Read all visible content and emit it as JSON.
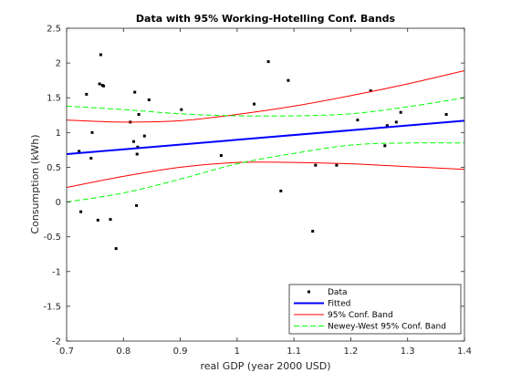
{
  "chart_data": {
    "type": "scatter",
    "title": "Data with 95% Working-Hotelling Conf. Bands",
    "xlabel": "real GDP (year 2000 USD)",
    "ylabel": "Consumption (kWh)",
    "xlim": [
      0.7,
      1.4
    ],
    "ylim": [
      -2,
      2.5
    ],
    "xticks": [
      "0.7",
      "0.8",
      "0.9",
      "1",
      "1.1",
      "1.2",
      "1.3",
      "1.4"
    ],
    "yticks": [
      "-2",
      "-1.5",
      "-1",
      "-0.5",
      "0",
      "0.5",
      "1",
      "1.5",
      "2",
      "2.5"
    ],
    "grid": false,
    "legend_position": "bottom-right",
    "series": [
      {
        "name": "Data",
        "kind": "points",
        "color": "#000000",
        "x": [
          0.722,
          0.725,
          0.735,
          0.743,
          0.745,
          0.755,
          0.758,
          0.76,
          0.763,
          0.765,
          0.777,
          0.787,
          0.812,
          0.818,
          0.82,
          0.823,
          0.824,
          0.825,
          0.827,
          0.837,
          0.845,
          0.902,
          0.972,
          1.03,
          1.055,
          1.077,
          1.09,
          1.133,
          1.138,
          1.175,
          1.212,
          1.235,
          1.26,
          1.264,
          1.28,
          1.288,
          1.368
        ],
        "y": [
          0.73,
          -0.14,
          1.55,
          0.63,
          1.0,
          -0.26,
          1.7,
          2.12,
          1.68,
          1.67,
          -0.25,
          -0.67,
          1.15,
          0.87,
          1.58,
          -0.05,
          0.69,
          0.79,
          1.26,
          0.95,
          1.47,
          1.33,
          0.67,
          1.41,
          2.02,
          0.16,
          1.75,
          -0.42,
          0.53,
          0.53,
          1.18,
          1.6,
          0.81,
          1.1,
          1.15,
          1.29,
          1.26
        ]
      },
      {
        "name": "Fitted",
        "kind": "line",
        "color": "#0000ff",
        "x": [
          0.7,
          1.4
        ],
        "y": [
          0.69,
          1.17
        ]
      },
      {
        "name": "95% Conf. Band",
        "kind": "line",
        "color": "#ff0000",
        "x": [
          0.7,
          0.8,
          0.9,
          1.0,
          1.1,
          1.2,
          1.3,
          1.4
        ],
        "y": [
          1.18,
          1.15,
          1.17,
          1.26,
          1.38,
          1.53,
          1.7,
          1.89
        ]
      },
      {
        "name": "",
        "kind": "line",
        "color": "#ff0000",
        "x": [
          0.7,
          0.8,
          0.9,
          1.0,
          1.1,
          1.2,
          1.3,
          1.4
        ],
        "y": [
          0.21,
          0.37,
          0.5,
          0.57,
          0.57,
          0.55,
          0.51,
          0.47
        ]
      },
      {
        "name": "Newey-West 95% Conf. Band",
        "kind": "dashed",
        "color": "#00ff00",
        "x": [
          0.7,
          0.8,
          0.9,
          1.0,
          1.1,
          1.2,
          1.3,
          1.4
        ],
        "y": [
          1.38,
          1.33,
          1.27,
          1.24,
          1.24,
          1.27,
          1.37,
          1.5
        ]
      },
      {
        "name": "",
        "kind": "dashed",
        "color": "#00ff00",
        "x": [
          0.7,
          0.8,
          0.9,
          1.0,
          1.1,
          1.2,
          1.3,
          1.4
        ],
        "y": [
          0.0,
          0.13,
          0.33,
          0.55,
          0.7,
          0.82,
          0.85,
          0.85
        ]
      }
    ],
    "legend": [
      "Data",
      "Fitted",
      "95% Conf. Band",
      "Newey-West 95% Conf. Band"
    ]
  }
}
